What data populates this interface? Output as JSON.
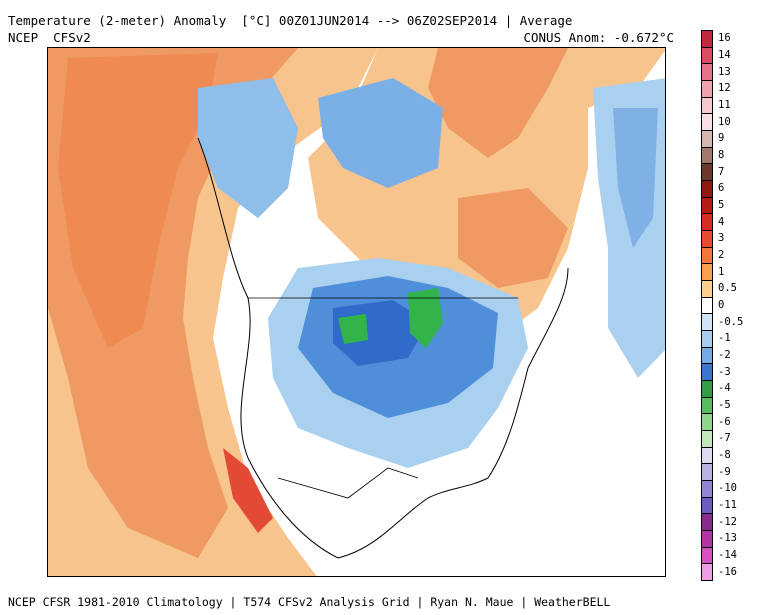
{
  "header": {
    "title": "Temperature (2-meter) Anomaly  [°C] 00Z01JUN2014 --> 06Z02SEP2014 | Average",
    "model": "NCEP  CFSv2",
    "conus_anomaly": "CONUS Anom: -0.672°C"
  },
  "footer": {
    "credit": "NCEP CFSR 1981-2010 Climatology | T574 CFSv2 Analysis Grid | Ryan N. Maue | WeatherBELL"
  },
  "colors": {
    "ocean_warm": "#f7c48d",
    "strong_warm": "#ef8c58",
    "hot": "#e24a36",
    "neutral": "#ffffff",
    "cool": "#a9d0ef",
    "cold": "#4f8fd9",
    "very_cold": "#2f6bc9",
    "green_anom": "#32b44a"
  },
  "legend": {
    "labels": [
      "16",
      "14",
      "13",
      "12",
      "11",
      "10",
      "9",
      "8",
      "7",
      "6",
      "5",
      "4",
      "3",
      "2",
      "1",
      "0.5",
      "0",
      "-0.5",
      "-1",
      "-2",
      "-3",
      "-4",
      "-5",
      "-6",
      "-7",
      "-8",
      "-9",
      "-10",
      "-11",
      "-12",
      "-13",
      "-14",
      "-16"
    ],
    "colors": [
      "#c02a3c",
      "#d94e60",
      "#e47485",
      "#efa2ae",
      "#f6c9d0",
      "#f7dfe4",
      "#d5b8ad",
      "#a1786a",
      "#6d3a2a",
      "#8e1b12",
      "#b51c14",
      "#d62d20",
      "#e84c2d",
      "#f2783a",
      "#f8a14f",
      "#fdd08c",
      "#ffffff",
      "#cfe5f6",
      "#a6ccee",
      "#73abe4",
      "#3a77cf",
      "#2f9e46",
      "#55bd5e",
      "#8fd58a",
      "#c1e8bb",
      "#dcd8ef",
      "#b8b2e3",
      "#8f86d3",
      "#6a5dbf",
      "#8a2a8c",
      "#b334a7",
      "#d64fc4",
      "#f09be6"
    ]
  }
}
